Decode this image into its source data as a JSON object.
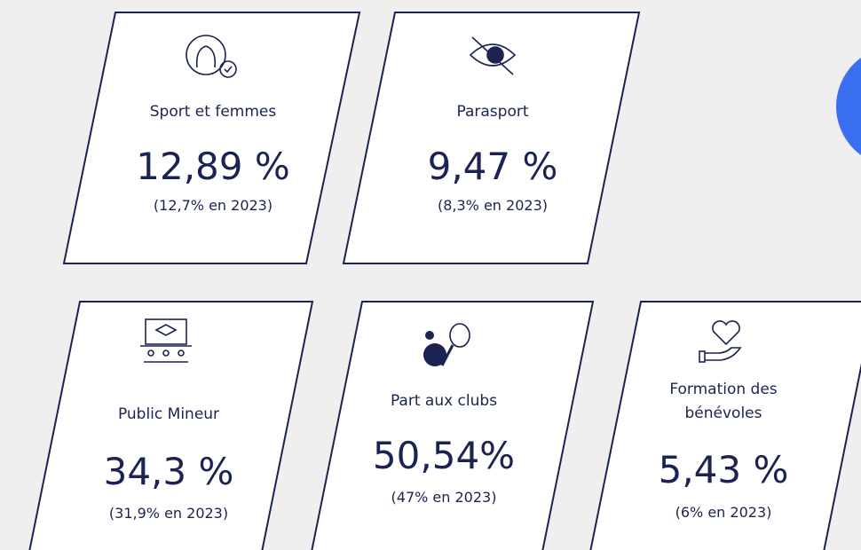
{
  "cards": [
    {
      "title_lines": [
        "Sport et femmes"
      ],
      "value": "12,89 %",
      "note": "(12,7% en 2023)"
    },
    {
      "title_lines": [
        "Parasport"
      ],
      "value": "9,47 %",
      "note": "(8,3% en 2023)"
    },
    {
      "title_lines": [
        "Public Mineur"
      ],
      "value": "34,3 %",
      "note": "(31,9% en 2023)"
    },
    {
      "title_lines": [
        "Part aux clubs"
      ],
      "value": "50,54%",
      "note": "(47% en 2023)"
    },
    {
      "title_lines": [
        "Formation des",
        "bénévoles"
      ],
      "value": "5,43 %",
      "note": "(6% en 2023)"
    }
  ]
}
